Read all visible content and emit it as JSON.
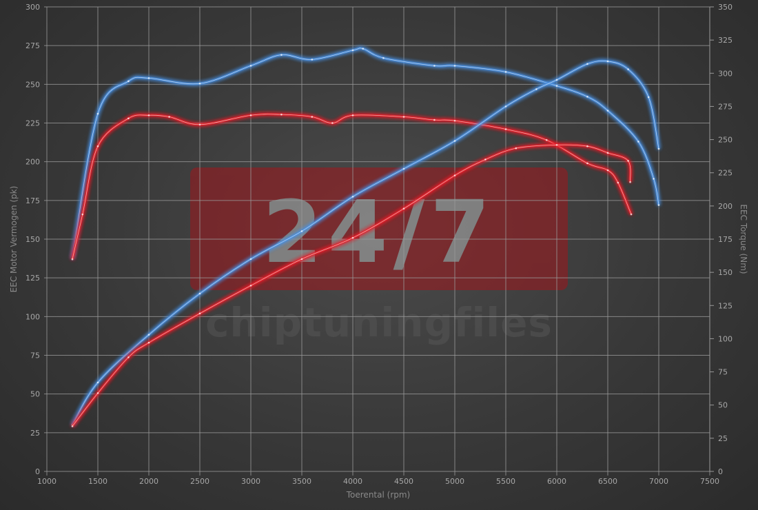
{
  "chart_data": {
    "type": "line",
    "title": "",
    "xlabel": "Toerental (rpm)",
    "ylabel_left": "EEC Motor Vermogen (pk)",
    "ylabel_right": "EEC Torque (Nm)",
    "xlim": [
      1000,
      7500
    ],
    "ylim_left": [
      0,
      300
    ],
    "ylim_right": [
      0,
      350
    ],
    "x_ticks": [
      1000,
      1500,
      2000,
      2500,
      3000,
      3500,
      4000,
      4500,
      5000,
      5500,
      6000,
      6500,
      7000,
      7500
    ],
    "y_ticks_left": [
      0,
      25,
      50,
      75,
      100,
      125,
      150,
      175,
      200,
      225,
      250,
      275,
      300
    ],
    "y_ticks_right": [
      0,
      25,
      50,
      75,
      100,
      125,
      150,
      175,
      200,
      225,
      250,
      275,
      300,
      325,
      350
    ],
    "grid": true,
    "legend": "none",
    "colors": {
      "tuned": "#4a90e2",
      "stock": "#e8202a",
      "background": "#3a3a3a",
      "grid": "#9a9a9a"
    },
    "watermark": {
      "logo_text": "24/7",
      "brand_text": "chiptuningfiles"
    },
    "series": [
      {
        "axis": "left",
        "color": "#4a90e2",
        "points": [
          [
            1250,
            137.5
          ],
          [
            1500,
            231
          ],
          [
            1800,
            252
          ],
          [
            2000,
            254
          ],
          [
            2500,
            250.5
          ],
          [
            3000,
            262
          ],
          [
            3300,
            269
          ],
          [
            3600,
            266
          ],
          [
            4000,
            272
          ],
          [
            4100,
            273
          ],
          [
            4300,
            267
          ],
          [
            4800,
            262
          ],
          [
            5000,
            262
          ],
          [
            5500,
            258
          ],
          [
            6000,
            249
          ],
          [
            6300,
            242
          ],
          [
            6500,
            233
          ],
          [
            6800,
            213
          ],
          [
            6950,
            189
          ],
          [
            7000,
            172
          ]
        ]
      },
      {
        "axis": "left",
        "color": "#e8202a",
        "points": [
          [
            1250,
            137
          ],
          [
            1350,
            166
          ],
          [
            1500,
            210
          ],
          [
            1800,
            228
          ],
          [
            2000,
            230
          ],
          [
            2200,
            229
          ],
          [
            2500,
            224
          ],
          [
            3000,
            230
          ],
          [
            3300,
            230.5
          ],
          [
            3600,
            229
          ],
          [
            3800,
            225
          ],
          [
            4000,
            230
          ],
          [
            4500,
            229
          ],
          [
            4800,
            227
          ],
          [
            5000,
            226.5
          ],
          [
            5500,
            221
          ],
          [
            5900,
            214
          ],
          [
            6300,
            199
          ],
          [
            6500,
            194.5
          ],
          [
            6600,
            186.5
          ],
          [
            6730,
            166
          ]
        ]
      },
      {
        "axis": "right",
        "color": "#4a90e2",
        "points": [
          [
            1250,
            35
          ],
          [
            1500,
            67
          ],
          [
            2000,
            103
          ],
          [
            2500,
            134
          ],
          [
            3000,
            160
          ],
          [
            3500,
            181
          ],
          [
            4000,
            207
          ],
          [
            4500,
            228
          ],
          [
            5000,
            249
          ],
          [
            5500,
            275
          ],
          [
            5800,
            288
          ],
          [
            6000,
            295
          ],
          [
            6300,
            307
          ],
          [
            6500,
            309
          ],
          [
            6700,
            303
          ],
          [
            6900,
            282
          ],
          [
            7000,
            243
          ]
        ]
      },
      {
        "axis": "right",
        "color": "#e8202a",
        "points": [
          [
            1250,
            34
          ],
          [
            1500,
            59
          ],
          [
            1800,
            86
          ],
          [
            2000,
            97
          ],
          [
            2500,
            119
          ],
          [
            3000,
            140
          ],
          [
            3500,
            160
          ],
          [
            4000,
            176
          ],
          [
            4500,
            198
          ],
          [
            5000,
            223
          ],
          [
            5300,
            235
          ],
          [
            5600,
            243.5
          ],
          [
            6000,
            246
          ],
          [
            6300,
            245
          ],
          [
            6500,
            240
          ],
          [
            6700,
            234
          ],
          [
            6720,
            218
          ]
        ]
      }
    ]
  }
}
